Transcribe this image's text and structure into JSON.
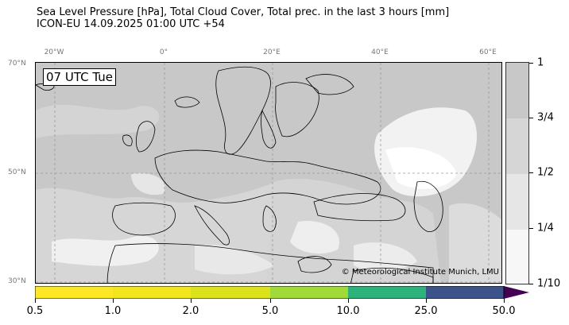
{
  "header": {
    "line1": "Sea Level Pressure [hPa], Total Cloud Cover, Total prec. in the last 3 hours [mm]",
    "line2": "ICON-EU 14.09.2025 01:00 UTC +54"
  },
  "map": {
    "time_label": "07 UTC Tue",
    "copyright": "© Meteorological Institute Munich, LMU",
    "lon_labels": [
      "20°W",
      "0°",
      "20°E",
      "40°E",
      "60°E"
    ],
    "lat_labels": [
      "70°N",
      "50°N",
      "30°N"
    ],
    "colors": {
      "cloud_overcast": "#c8c8c8",
      "cloud_broken": "#d6d6d6",
      "cloud_scattered": "#e6e6e6",
      "cloud_clear": "#f7f7f7",
      "coastline": "#000000",
      "grid": "#999999"
    }
  },
  "cloud_cover_legend": {
    "labels": [
      "1",
      "3/4",
      "1/2",
      "1/4",
      "1/10"
    ],
    "colors": [
      "#c8c8c8",
      "#d6d6d6",
      "#e6e6e6",
      "#f7f7f7"
    ]
  },
  "precip_legend": {
    "labels": [
      "0.5",
      "1.0",
      "2.0",
      "5.0",
      "10.0",
      "25.0",
      "50.0"
    ],
    "colors": [
      "#fde725",
      "#dbe21a",
      "#a0da39",
      "#2db27d",
      "#2a788e",
      "#3b528b",
      "#440154"
    ]
  }
}
